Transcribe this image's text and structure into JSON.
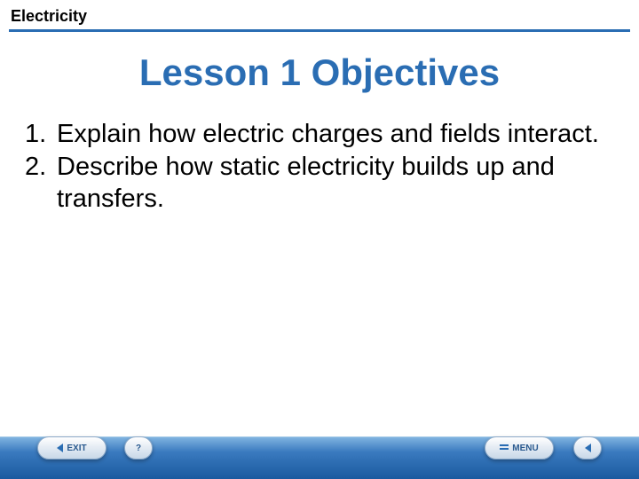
{
  "header": {
    "title": "Electricity",
    "text_color": "#000000",
    "line_color": "#2a6db3",
    "fontsize": 18
  },
  "slide": {
    "title": "Lesson 1 Objectives",
    "title_color": "#2a6db3",
    "title_fontsize": 42,
    "background": "#ffffff",
    "objectives": [
      {
        "num": "1.",
        "text": "Explain how electric charges and fields interact."
      },
      {
        "num": "2.",
        "text": "Describe how static electricity builds up and transfers."
      }
    ],
    "body_fontsize": 29,
    "body_color": "#000000"
  },
  "footer": {
    "gradient_top": "#7fb3e0",
    "gradient_mid": "#3a7abf",
    "gradient_bottom": "#1a5a9f",
    "buttons": {
      "exit": "EXIT",
      "help": "?",
      "menu": "MENU"
    },
    "button_text_color": "#2a5a8f",
    "button_bg_top": "#ffffff",
    "button_bg_bottom": "#c8d8e8"
  }
}
